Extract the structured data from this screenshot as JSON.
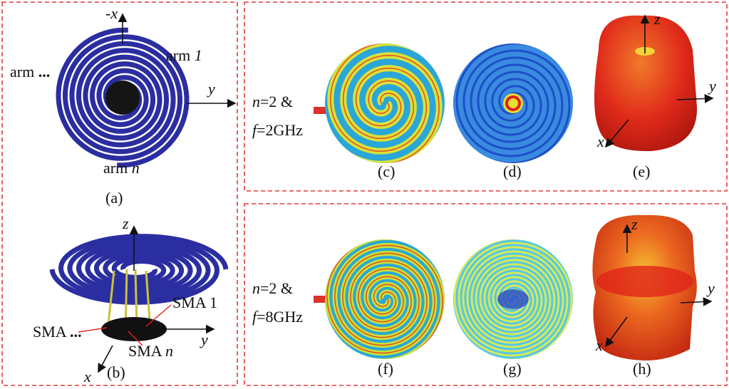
{
  "panel_a": {
    "axis_top": "-x",
    "axis_right": "y",
    "arm_1": {
      "text": "arm",
      "index": "1"
    },
    "arm_dots": {
      "text": "arm",
      "index": "..."
    },
    "arm_n": {
      "text": "arm",
      "index": "n"
    },
    "caption": "(a)"
  },
  "panel_b": {
    "axis_z": "z",
    "axis_y": "y",
    "axis_x": "x",
    "sma_1": "SMA 1",
    "sma_dots": {
      "text": "SMA",
      "index": "..."
    },
    "sma_n": {
      "text": "SMA",
      "index": "n"
    },
    "caption": "(b)"
  },
  "row_top": {
    "condition_n": {
      "var": "n",
      "rest": "=2 &"
    },
    "condition_f": {
      "var": "f",
      "rest": "=2GHz"
    },
    "captions": [
      "(c)",
      "(d)",
      "(e)"
    ],
    "axis_z": "z",
    "axis_y": "y",
    "axis_x": "x"
  },
  "row_bottom": {
    "condition_n": {
      "var": "n",
      "rest": "=2 &"
    },
    "condition_f": {
      "var": "f",
      "rest": "=8GHz"
    },
    "captions": [
      "(f)",
      "(g)",
      "(h)"
    ],
    "axis_z": "z",
    "axis_y": "y",
    "axis_x": "x"
  }
}
